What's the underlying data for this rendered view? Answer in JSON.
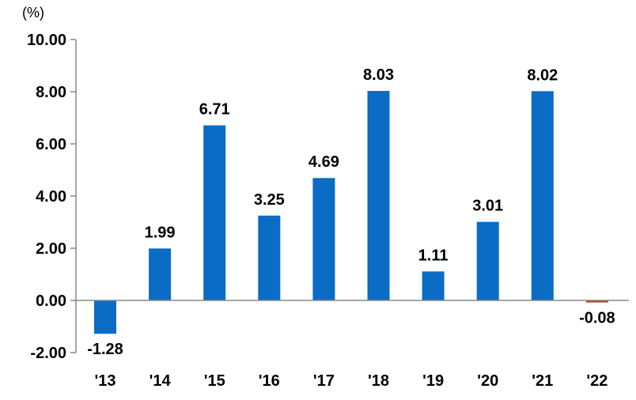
{
  "chart_data": {
    "type": "bar",
    "unit": "(%)",
    "categories": [
      "'13",
      "'14",
      "'15",
      "'16",
      "'17",
      "'18",
      "'19",
      "'20",
      "'21",
      "'22"
    ],
    "values": [
      -1.28,
      1.99,
      6.71,
      3.25,
      4.69,
      8.03,
      1.11,
      3.01,
      8.02,
      -0.08
    ],
    "value_labels": [
      "-1.28",
      "1.99",
      "6.71",
      "3.25",
      "4.69",
      "8.03",
      "1.11",
      "3.01",
      "8.02",
      "-0.08"
    ],
    "yticks": [
      "-2.00",
      "0.00",
      "2.00",
      "4.00",
      "6.00",
      "8.00",
      "10.00"
    ],
    "ylim": [
      -2,
      10
    ],
    "grid": false,
    "colors": {
      "bar": "#0a6cc4",
      "highlight_bar": "#c0392b",
      "axis": "#888888"
    },
    "highlight_index": 9
  }
}
